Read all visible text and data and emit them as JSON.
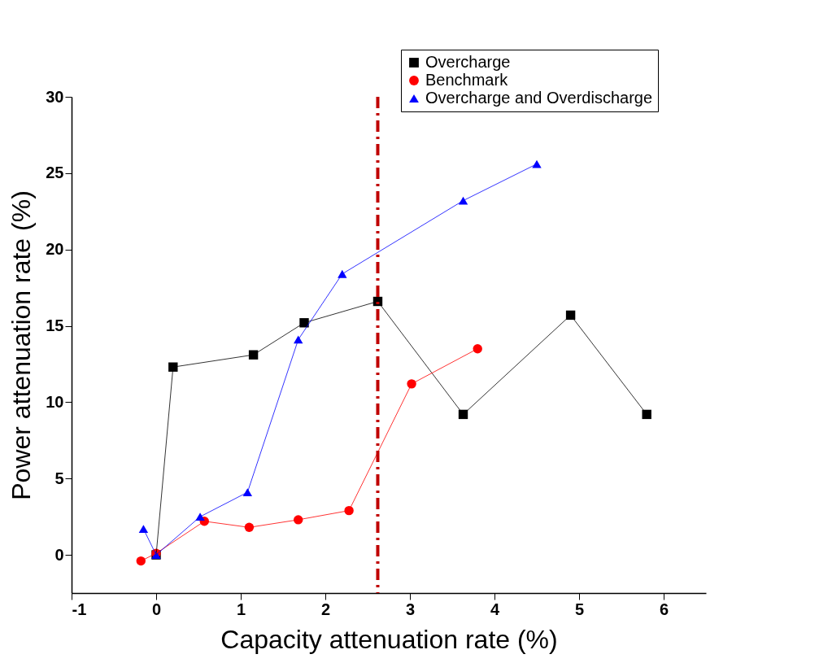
{
  "chart_data": {
    "type": "line",
    "xlabel": "Capacity attenuation rate (%)",
    "ylabel": "Power attenuation rate (%)",
    "xlim": [
      -1,
      6.5
    ],
    "xticks": [
      -1,
      0,
      1,
      2,
      3,
      4,
      5,
      6
    ],
    "ylim": [
      -2.5,
      30
    ],
    "yticks": [
      0,
      5,
      10,
      15,
      20,
      25,
      30
    ],
    "grid": false,
    "legend": "top right",
    "line_style": "solid",
    "series": [
      {
        "name": "Overcharge",
        "color": "#000000",
        "marker": "square",
        "x": [
          0,
          0.2,
          1.15,
          1.75,
          2.62,
          3.63,
          4.9,
          5.8
        ],
        "values": [
          0,
          12.3,
          13.1,
          15.2,
          16.6,
          9.2,
          15.7,
          9.2
        ]
      },
      {
        "name": "Benchmark",
        "color": "#ff0000",
        "marker": "circle",
        "x": [
          -0.18,
          0,
          0.57,
          1.1,
          1.68,
          2.28,
          3.02,
          3.8
        ],
        "values": [
          -0.4,
          0.1,
          2.2,
          1.8,
          2.3,
          2.9,
          11.2,
          13.5
        ]
      },
      {
        "name": "Overcharge and Overdischarge",
        "color": "#0000ff",
        "marker": "triangle",
        "x": [
          -0.15,
          0,
          0.52,
          1.08,
          1.68,
          2.2,
          3.63,
          4.5
        ],
        "values": [
          1.7,
          0,
          2.5,
          4.1,
          14.1,
          18.4,
          23.2,
          25.6
        ]
      }
    ],
    "ref_lines": [
      {
        "axis": "x",
        "value": 2.62,
        "color": "#c00000",
        "line_style": "dashdot"
      }
    ]
  }
}
